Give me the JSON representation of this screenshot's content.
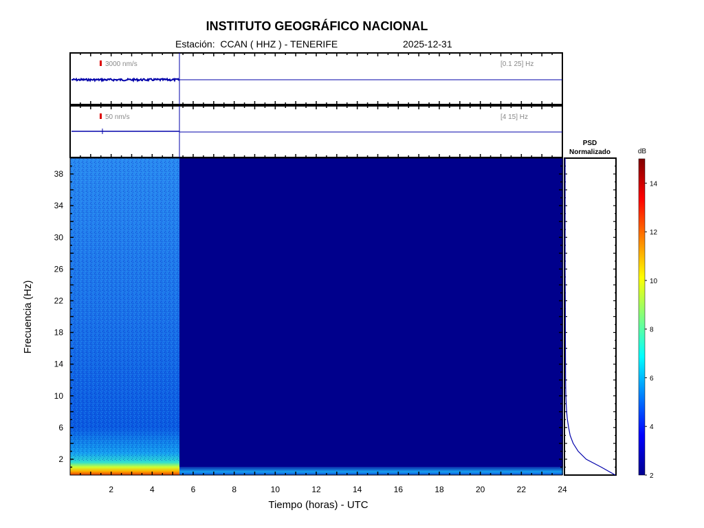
{
  "header": {
    "title": "INSTITUTO GEOGRÁFICO NACIONAL",
    "station": "Estación:  CCAN ( HHZ ) - TENERIFE",
    "date": "2025-12-31"
  },
  "colors": {
    "trace": "#0000aa",
    "scale_marker": "#dd0000",
    "frame": "#000000"
  },
  "chart_data": [
    {
      "type": "line",
      "name": "seismogram-low-band",
      "scale_label": "3000 nm/s",
      "band_label": "[0.1 25] Hz",
      "x": [
        0,
        5.4,
        24
      ],
      "y": [
        0,
        0,
        0
      ],
      "xlim": [
        0,
        24
      ]
    },
    {
      "type": "line",
      "name": "seismogram-high-band",
      "scale_label": "50 nm/s",
      "band_label": "[4 15] Hz",
      "x": [
        0,
        5.4,
        24
      ],
      "y": [
        0,
        0,
        0
      ],
      "xlim": [
        0,
        24
      ]
    },
    {
      "type": "heatmap",
      "xlabel": "Tiempo (horas) - UTC",
      "ylabel": "Frecuencia  (Hz)",
      "xlim": [
        0,
        24
      ],
      "ylim": [
        0,
        40
      ],
      "x_ticks": [
        2,
        4,
        6,
        8,
        10,
        12,
        14,
        16,
        18,
        20,
        22,
        24
      ],
      "y_ticks": [
        2,
        6,
        10,
        14,
        18,
        22,
        26,
        30,
        34,
        38
      ],
      "data_end_hour": 5.4,
      "colorbar": {
        "label": "dB",
        "range": [
          2,
          15
        ],
        "ticks": [
          2,
          4,
          6,
          8,
          10,
          12,
          14
        ]
      }
    },
    {
      "type": "line",
      "title": "PSD Normalizado",
      "title_lines": [
        "PSD",
        "Normalizado"
      ],
      "freq": [
        0,
        1,
        2,
        3,
        4,
        5,
        6,
        7,
        8,
        9,
        10,
        12,
        14,
        18,
        22,
        26,
        40
      ],
      "psd": [
        1.0,
        0.72,
        0.42,
        0.26,
        0.16,
        0.1,
        0.07,
        0.045,
        0.03,
        0.022,
        0.015,
        0.01,
        0.008,
        0.006,
        0.004,
        0.0,
        0.0
      ]
    }
  ]
}
